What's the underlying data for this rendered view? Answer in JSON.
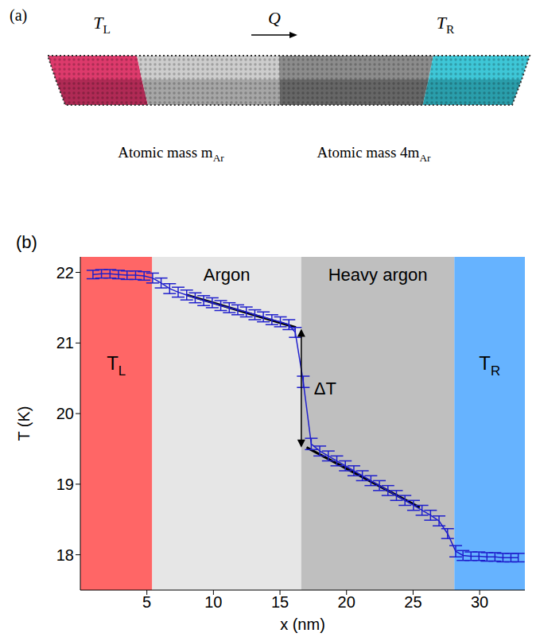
{
  "diagram": {
    "label": "(a)",
    "left_temperature": {
      "text": "T",
      "sub": "L"
    },
    "heat_flow": "Q",
    "right_temperature": {
      "text": "T",
      "sub": "R"
    },
    "left_material": {
      "text": "Atomic mass m",
      "sub": "Ar"
    },
    "right_material": {
      "text": "Atomic mass 4m",
      "sub": "Ar"
    }
  },
  "chart_data": {
    "type": "line",
    "panel": "(b)",
    "x_label": "x (nm)",
    "y_label": "T (K)",
    "xlim": [
      0,
      33.4
    ],
    "ylim": [
      17.5,
      22.22
    ],
    "xticks": [
      5,
      10,
      15,
      20,
      25,
      30
    ],
    "yticks": [
      18,
      19,
      20,
      21,
      22
    ],
    "color": "#1f1fcc",
    "x": [
      0.95,
      1.59,
      2.23,
      2.87,
      3.51,
      4.15,
      4.79,
      5.43,
      6.07,
      6.71,
      7.35,
      7.99,
      8.63,
      9.27,
      9.91,
      10.55,
      11.19,
      11.83,
      12.47,
      13.11,
      13.75,
      14.39,
      15.03,
      15.67,
      16.15,
      16.75,
      17.35,
      17.99,
      18.63,
      19.27,
      19.91,
      20.55,
      21.19,
      21.83,
      22.47,
      23.11,
      23.75,
      24.39,
      25.03,
      25.67,
      26.31,
      26.95,
      27.59,
      28.2,
      28.75,
      29.35,
      29.95,
      30.55,
      31.15,
      31.75,
      32.35,
      32.9
    ],
    "values": [
      21.97,
      21.98,
      21.98,
      21.97,
      21.96,
      21.96,
      21.95,
      21.92,
      21.85,
      21.77,
      21.72,
      21.68,
      21.64,
      21.6,
      21.57,
      21.53,
      21.5,
      21.47,
      21.44,
      21.4,
      21.37,
      21.33,
      21.3,
      21.26,
      21.15,
      20.45,
      19.57,
      19.47,
      19.4,
      19.33,
      19.26,
      19.19,
      19.12,
      19.05,
      18.98,
      18.91,
      18.84,
      18.77,
      18.7,
      18.63,
      18.56,
      18.48,
      18.3,
      18.05,
      17.99,
      17.98,
      17.98,
      17.97,
      17.97,
      17.96,
      17.96,
      17.96
    ],
    "errors": [
      0.06,
      0.06,
      0.06,
      0.06,
      0.06,
      0.06,
      0.06,
      0.07,
      0.07,
      0.07,
      0.07,
      0.07,
      0.07,
      0.07,
      0.07,
      0.07,
      0.07,
      0.07,
      0.07,
      0.07,
      0.07,
      0.07,
      0.07,
      0.07,
      0.07,
      0.08,
      0.08,
      0.07,
      0.07,
      0.07,
      0.07,
      0.07,
      0.07,
      0.07,
      0.07,
      0.07,
      0.07,
      0.07,
      0.07,
      0.07,
      0.07,
      0.07,
      0.07,
      0.08,
      0.07,
      0.06,
      0.06,
      0.06,
      0.06,
      0.06,
      0.06,
      0.06
    ],
    "regions": [
      {
        "x": [
          0,
          5.4
        ],
        "color": "#ff6666",
        "label": {
          "text": "T",
          "sub": "L"
        }
      },
      {
        "x": [
          5.4,
          16.6
        ],
        "color": "#e6e6e6",
        "label": "Argon"
      },
      {
        "x": [
          16.6,
          28.1
        ],
        "color": "#bfbfbf",
        "label": "Heavy argon"
      },
      {
        "x": [
          28.1,
          33.4
        ],
        "color": "#66b3ff",
        "label": {
          "text": "T",
          "sub": "R"
        }
      }
    ],
    "fit_lines": [
      {
        "x": [
          8.0,
          16.2
        ],
        "y": [
          21.68,
          21.22
        ]
      },
      {
        "x": [
          17.0,
          25.5
        ],
        "y": [
          19.52,
          18.67
        ]
      }
    ],
    "fit_color": "#000000",
    "annotation": {
      "text": "ΔT",
      "x": 16.6,
      "y": [
        21.2,
        19.52
      ]
    }
  }
}
